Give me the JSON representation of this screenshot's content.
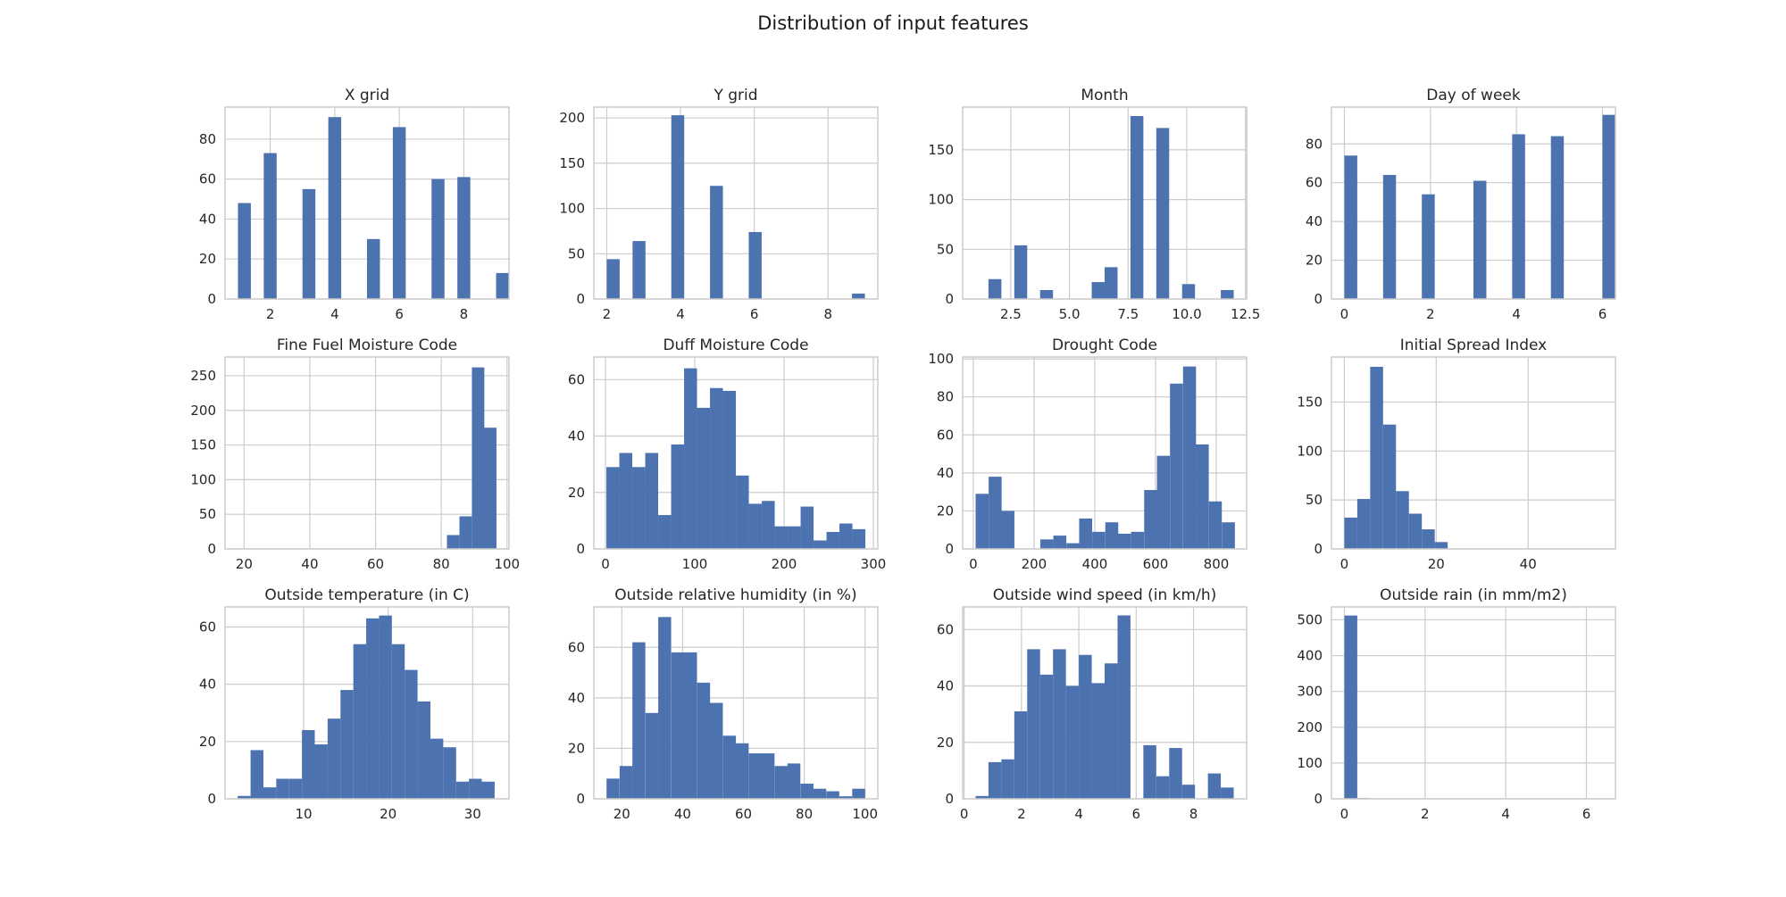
{
  "figure": {
    "title": "Distribution of input features"
  },
  "style": {
    "bar_color": "#4c72b0",
    "grid_color": "#cccccc",
    "frame_color": "#cccccc"
  },
  "chart_data": [
    {
      "type": "bar",
      "title": "X grid",
      "xlim": [
        0.6,
        9.4
      ],
      "ylim": [
        0,
        96
      ],
      "xticks": [
        2,
        4,
        6,
        8
      ],
      "yticks": [
        0,
        20,
        40,
        60,
        80
      ],
      "grid": true,
      "bin_width": 0.4,
      "bars": [
        {
          "x": 1.2,
          "y": 48
        },
        {
          "x": 2.0,
          "y": 73
        },
        {
          "x": 3.2,
          "y": 55
        },
        {
          "x": 4.0,
          "y": 91
        },
        {
          "x": 5.2,
          "y": 30
        },
        {
          "x": 6.0,
          "y": 86
        },
        {
          "x": 7.2,
          "y": 60
        },
        {
          "x": 8.0,
          "y": 61
        },
        {
          "x": 9.2,
          "y": 13
        }
      ]
    },
    {
      "type": "bar",
      "title": "Y grid",
      "xlim": [
        1.65,
        9.35
      ],
      "ylim": [
        0,
        212
      ],
      "xticks": [
        2,
        4,
        6,
        8
      ],
      "yticks": [
        0,
        50,
        100,
        150,
        200
      ],
      "grid": true,
      "bin_width": 0.35,
      "bars": [
        {
          "x": 2.175,
          "y": 44
        },
        {
          "x": 2.875,
          "y": 64
        },
        {
          "x": 3.925,
          "y": 203
        },
        {
          "x": 4.975,
          "y": 125
        },
        {
          "x": 6.025,
          "y": 74
        },
        {
          "x": 8.825,
          "y": 6
        }
      ]
    },
    {
      "type": "bar",
      "title": "Month",
      "xlim": [
        0.45,
        12.55
      ],
      "ylim": [
        0,
        193
      ],
      "xticks": [
        2.5,
        5.0,
        7.5,
        10.0,
        12.5
      ],
      "yticks": [
        0,
        50,
        100,
        150
      ],
      "grid": true,
      "bin_width": 0.55,
      "bars": [
        {
          "x": 1.825,
          "y": 20
        },
        {
          "x": 2.925,
          "y": 54
        },
        {
          "x": 4.025,
          "y": 9
        },
        {
          "x": 6.225,
          "y": 17
        },
        {
          "x": 6.775,
          "y": 32
        },
        {
          "x": 7.875,
          "y": 184
        },
        {
          "x": 8.975,
          "y": 172
        },
        {
          "x": 10.075,
          "y": 15
        },
        {
          "x": 11.725,
          "y": 9
        }
      ]
    },
    {
      "type": "bar",
      "title": "Day of week",
      "xlim": [
        -0.3,
        6.3
      ],
      "ylim": [
        0,
        99
      ],
      "xticks": [
        0,
        2,
        4,
        6
      ],
      "yticks": [
        0,
        20,
        40,
        60,
        80
      ],
      "grid": true,
      "bin_width": 0.3,
      "bars": [
        {
          "x": 0.15,
          "y": 74
        },
        {
          "x": 1.05,
          "y": 64
        },
        {
          "x": 1.95,
          "y": 54
        },
        {
          "x": 3.15,
          "y": 61
        },
        {
          "x": 4.05,
          "y": 85
        },
        {
          "x": 4.95,
          "y": 84
        },
        {
          "x": 6.15,
          "y": 95
        }
      ]
    },
    {
      "type": "bar",
      "title": "Fine Fuel Moisture Code",
      "xlim": [
        14.2,
        100.6
      ],
      "ylim": [
        0,
        277
      ],
      "xticks": [
        20,
        40,
        60,
        80,
        100
      ],
      "yticks": [
        0,
        50,
        100,
        150,
        200,
        250
      ],
      "grid": true,
      "bin_width": 3.77,
      "bars": [
        {
          "x": 83.6,
          "y": 20
        },
        {
          "x": 87.4,
          "y": 47
        },
        {
          "x": 91.2,
          "y": 262
        },
        {
          "x": 94.9,
          "y": 175
        }
      ]
    },
    {
      "type": "bar",
      "title": "Duff Moisture Code",
      "xlim": [
        -13,
        305
      ],
      "ylim": [
        0,
        68
      ],
      "xticks": [
        0,
        100,
        200,
        300
      ],
      "yticks": [
        0,
        20,
        40,
        60
      ],
      "grid": true,
      "bin_width": 14.5,
      "bars": [
        {
          "x": 8.3,
          "y": 29
        },
        {
          "x": 22.8,
          "y": 34
        },
        {
          "x": 37.3,
          "y": 29
        },
        {
          "x": 51.8,
          "y": 34
        },
        {
          "x": 66.3,
          "y": 12
        },
        {
          "x": 80.8,
          "y": 37
        },
        {
          "x": 95.3,
          "y": 64
        },
        {
          "x": 109.8,
          "y": 50
        },
        {
          "x": 124.3,
          "y": 57
        },
        {
          "x": 138.8,
          "y": 56
        },
        {
          "x": 153.3,
          "y": 26
        },
        {
          "x": 167.8,
          "y": 16
        },
        {
          "x": 182.3,
          "y": 17
        },
        {
          "x": 196.8,
          "y": 8
        },
        {
          "x": 211.3,
          "y": 8
        },
        {
          "x": 225.8,
          "y": 15
        },
        {
          "x": 240.3,
          "y": 3
        },
        {
          "x": 254.8,
          "y": 6
        },
        {
          "x": 269.3,
          "y": 9
        },
        {
          "x": 283.8,
          "y": 7
        }
      ]
    },
    {
      "type": "bar",
      "title": "Drought Code",
      "xlim": [
        -35,
        900
      ],
      "ylim": [
        0,
        101
      ],
      "xticks": [
        0,
        200,
        400,
        600,
        800
      ],
      "yticks": [
        0,
        20,
        40,
        60,
        80,
        100
      ],
      "grid": true,
      "bin_width": 42.7,
      "bars": [
        {
          "x": 29,
          "y": 29
        },
        {
          "x": 72,
          "y": 38
        },
        {
          "x": 114,
          "y": 20
        },
        {
          "x": 242,
          "y": 5
        },
        {
          "x": 285,
          "y": 7
        },
        {
          "x": 328,
          "y": 3
        },
        {
          "x": 370,
          "y": 16
        },
        {
          "x": 413,
          "y": 9
        },
        {
          "x": 456,
          "y": 14
        },
        {
          "x": 498,
          "y": 8
        },
        {
          "x": 541,
          "y": 9
        },
        {
          "x": 584,
          "y": 31
        },
        {
          "x": 626,
          "y": 49
        },
        {
          "x": 669,
          "y": 87
        },
        {
          "x": 712,
          "y": 96
        },
        {
          "x": 754,
          "y": 55
        },
        {
          "x": 797,
          "y": 25
        },
        {
          "x": 840,
          "y": 14
        }
      ]
    },
    {
      "type": "bar",
      "title": "Initial Spread Index",
      "xlim": [
        -2.8,
        59.0
      ],
      "ylim": [
        0,
        196
      ],
      "xticks": [
        0,
        20,
        40
      ],
      "yticks": [
        0,
        50,
        100,
        150
      ],
      "grid": true,
      "bin_width": 2.81,
      "bars": [
        {
          "x": 1.41,
          "y": 32
        },
        {
          "x": 4.22,
          "y": 51
        },
        {
          "x": 7.03,
          "y": 186
        },
        {
          "x": 9.84,
          "y": 127
        },
        {
          "x": 12.65,
          "y": 59
        },
        {
          "x": 15.46,
          "y": 36
        },
        {
          "x": 18.27,
          "y": 20
        },
        {
          "x": 21.08,
          "y": 7
        }
      ]
    },
    {
      "type": "bar",
      "title": "Outside temperature (in C)",
      "xlim": [
        0.7,
        34.3
      ],
      "ylim": [
        0,
        67
      ],
      "xticks": [
        10,
        20,
        30
      ],
      "yticks": [
        0,
        20,
        40,
        60
      ],
      "grid": true,
      "bin_width": 1.52,
      "bars": [
        {
          "x": 2.96,
          "y": 1
        },
        {
          "x": 4.48,
          "y": 17
        },
        {
          "x": 6.0,
          "y": 4
        },
        {
          "x": 7.52,
          "y": 7
        },
        {
          "x": 9.04,
          "y": 7
        },
        {
          "x": 10.56,
          "y": 24
        },
        {
          "x": 12.08,
          "y": 19
        },
        {
          "x": 13.6,
          "y": 28
        },
        {
          "x": 15.12,
          "y": 38
        },
        {
          "x": 16.64,
          "y": 54
        },
        {
          "x": 18.16,
          "y": 63
        },
        {
          "x": 19.68,
          "y": 64
        },
        {
          "x": 21.2,
          "y": 54
        },
        {
          "x": 22.72,
          "y": 45
        },
        {
          "x": 24.24,
          "y": 34
        },
        {
          "x": 25.76,
          "y": 21
        },
        {
          "x": 27.28,
          "y": 18
        },
        {
          "x": 28.8,
          "y": 6
        },
        {
          "x": 30.32,
          "y": 7
        },
        {
          "x": 31.84,
          "y": 6
        }
      ]
    },
    {
      "type": "bar",
      "title": "Outside relative humidity (in %)",
      "xlim": [
        10.8,
        104.2
      ],
      "ylim": [
        0,
        76
      ],
      "xticks": [
        20,
        40,
        60,
        80,
        100
      ],
      "yticks": [
        0,
        20,
        40,
        60
      ],
      "grid": true,
      "bin_width": 4.25,
      "bars": [
        {
          "x": 17.1,
          "y": 8
        },
        {
          "x": 21.4,
          "y": 13
        },
        {
          "x": 25.6,
          "y": 62
        },
        {
          "x": 29.9,
          "y": 34
        },
        {
          "x": 34.1,
          "y": 72
        },
        {
          "x": 38.4,
          "y": 58
        },
        {
          "x": 42.6,
          "y": 58
        },
        {
          "x": 46.9,
          "y": 46
        },
        {
          "x": 51.1,
          "y": 38
        },
        {
          "x": 55.4,
          "y": 25
        },
        {
          "x": 59.6,
          "y": 22
        },
        {
          "x": 63.9,
          "y": 18
        },
        {
          "x": 68.1,
          "y": 18
        },
        {
          "x": 72.4,
          "y": 13
        },
        {
          "x": 76.6,
          "y": 14
        },
        {
          "x": 80.9,
          "y": 6
        },
        {
          "x": 85.1,
          "y": 4
        },
        {
          "x": 89.4,
          "y": 3
        },
        {
          "x": 93.6,
          "y": 1
        },
        {
          "x": 97.9,
          "y": 4
        }
      ]
    },
    {
      "type": "bar",
      "title": "Outside wind speed (in km/h)",
      "xlim": [
        -0.05,
        9.85
      ],
      "ylim": [
        0,
        68
      ],
      "xticks": [
        0,
        2,
        4,
        6,
        8
      ],
      "yticks": [
        0,
        20,
        40,
        60
      ],
      "grid": true,
      "bin_width": 0.45,
      "bars": [
        {
          "x": 0.625,
          "y": 1
        },
        {
          "x": 1.075,
          "y": 13
        },
        {
          "x": 1.525,
          "y": 14
        },
        {
          "x": 1.975,
          "y": 31
        },
        {
          "x": 2.425,
          "y": 53
        },
        {
          "x": 2.875,
          "y": 44
        },
        {
          "x": 3.325,
          "y": 53
        },
        {
          "x": 3.775,
          "y": 40
        },
        {
          "x": 4.225,
          "y": 51
        },
        {
          "x": 4.675,
          "y": 41
        },
        {
          "x": 5.125,
          "y": 48
        },
        {
          "x": 5.575,
          "y": 65
        },
        {
          "x": 6.475,
          "y": 19
        },
        {
          "x": 6.925,
          "y": 8
        },
        {
          "x": 7.375,
          "y": 18
        },
        {
          "x": 7.825,
          "y": 5
        },
        {
          "x": 8.725,
          "y": 9
        },
        {
          "x": 9.175,
          "y": 4
        }
      ]
    },
    {
      "type": "bar",
      "title": "Outside rain (in mm/m2)",
      "xlim": [
        -0.32,
        6.72
      ],
      "ylim": [
        0,
        536
      ],
      "xticks": [
        0,
        2,
        4,
        6
      ],
      "yticks": [
        0,
        100,
        200,
        300,
        400,
        500
      ],
      "grid": true,
      "bin_width": 0.32,
      "bars": [
        {
          "x": 0.16,
          "y": 512
        },
        {
          "x": 0.48,
          "y": 2
        },
        {
          "x": 1.44,
          "y": 1
        },
        {
          "x": 6.24,
          "y": 1
        }
      ]
    }
  ]
}
